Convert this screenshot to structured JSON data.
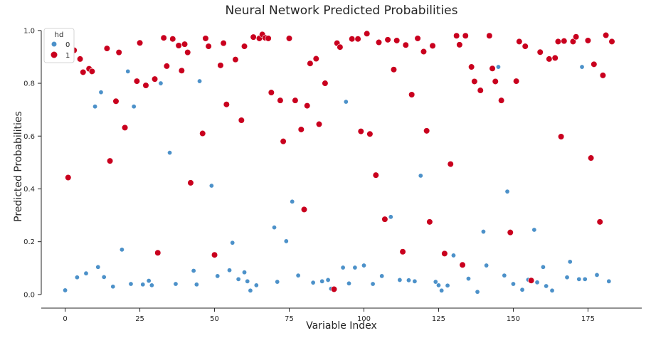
{
  "chart_data": {
    "type": "scatter",
    "title": "Neural Network Predicted Probabilities",
    "xlabel": "Variable Index",
    "ylabel": "Predicted Probabilities",
    "xlim": [
      -8,
      193
    ],
    "ylim": [
      -0.03,
      1.04
    ],
    "xticks": [
      0,
      25,
      50,
      75,
      100,
      125,
      150,
      175
    ],
    "yticks": [
      0.0,
      0.2,
      0.4,
      0.6,
      0.8,
      1.0
    ],
    "ytick_labels": [
      "0.0",
      "0.2",
      "0.4",
      "0.6",
      "0.8",
      "1.0"
    ],
    "grid": false,
    "legend": {
      "title": "hd",
      "placement": "top-left"
    },
    "series": [
      {
        "name": "0",
        "color": "#4c91c9",
        "points": [
          [
            0,
            0.016
          ],
          [
            4,
            0.065
          ],
          [
            7,
            0.08
          ],
          [
            10,
            0.712
          ],
          [
            11,
            0.104
          ],
          [
            12,
            0.766
          ],
          [
            13,
            0.066
          ],
          [
            16,
            0.03
          ],
          [
            19,
            0.17
          ],
          [
            21,
            0.845
          ],
          [
            22,
            0.04
          ],
          [
            23,
            0.712
          ],
          [
            26,
            0.038
          ],
          [
            28,
            0.052
          ],
          [
            29,
            0.035
          ],
          [
            32,
            0.8
          ],
          [
            35,
            0.537
          ],
          [
            37,
            0.04
          ],
          [
            43,
            0.09
          ],
          [
            44,
            0.038
          ],
          [
            45,
            0.808
          ],
          [
            49,
            0.412
          ],
          [
            51,
            0.07
          ],
          [
            55,
            0.092
          ],
          [
            56,
            0.196
          ],
          [
            58,
            0.058
          ],
          [
            60,
            0.084
          ],
          [
            61,
            0.05
          ],
          [
            62,
            0.015
          ],
          [
            64,
            0.035
          ],
          [
            70,
            0.254
          ],
          [
            71,
            0.048
          ],
          [
            74,
            0.202
          ],
          [
            76,
            0.352
          ],
          [
            78,
            0.072
          ],
          [
            83,
            0.045
          ],
          [
            86,
            0.05
          ],
          [
            88,
            0.055
          ],
          [
            89,
            0.022
          ],
          [
            93,
            0.102
          ],
          [
            94,
            0.73
          ],
          [
            95,
            0.042
          ],
          [
            97,
            0.102
          ],
          [
            100,
            0.11
          ],
          [
            103,
            0.04
          ],
          [
            106,
            0.07
          ],
          [
            109,
            0.294
          ],
          [
            112,
            0.055
          ],
          [
            115,
            0.054
          ],
          [
            117,
            0.05
          ],
          [
            119,
            0.45
          ],
          [
            124,
            0.048
          ],
          [
            125,
            0.035
          ],
          [
            126,
            0.015
          ],
          [
            128,
            0.034
          ],
          [
            130,
            0.148
          ],
          [
            135,
            0.06
          ],
          [
            138,
            0.01
          ],
          [
            140,
            0.238
          ],
          [
            141,
            0.11
          ],
          [
            145,
            0.862
          ],
          [
            147,
            0.072
          ],
          [
            148,
            0.39
          ],
          [
            150,
            0.04
          ],
          [
            153,
            0.018
          ],
          [
            155,
            0.056
          ],
          [
            157,
            0.245
          ],
          [
            158,
            0.046
          ],
          [
            160,
            0.104
          ],
          [
            161,
            0.032
          ],
          [
            163,
            0.015
          ],
          [
            168,
            0.065
          ],
          [
            169,
            0.124
          ],
          [
            172,
            0.058
          ],
          [
            173,
            0.862
          ],
          [
            174,
            0.058
          ],
          [
            178,
            0.074
          ],
          [
            182,
            0.05
          ]
        ]
      },
      {
        "name": "1",
        "color": "#c9001e",
        "points": [
          [
            1,
            0.443
          ],
          [
            2,
            0.962
          ],
          [
            3,
            0.925
          ],
          [
            5,
            0.892
          ],
          [
            6,
            0.842
          ],
          [
            8,
            0.855
          ],
          [
            9,
            0.845
          ],
          [
            14,
            0.932
          ],
          [
            15,
            0.506
          ],
          [
            17,
            0.732
          ],
          [
            18,
            0.917
          ],
          [
            20,
            0.632
          ],
          [
            24,
            0.808
          ],
          [
            25,
            0.953
          ],
          [
            27,
            0.792
          ],
          [
            30,
            0.816
          ],
          [
            31,
            0.158
          ],
          [
            33,
            0.972
          ],
          [
            34,
            0.865
          ],
          [
            36,
            0.968
          ],
          [
            38,
            0.943
          ],
          [
            39,
            0.848
          ],
          [
            40,
            0.948
          ],
          [
            41,
            0.917
          ],
          [
            42,
            0.423
          ],
          [
            46,
            0.61
          ],
          [
            47,
            0.97
          ],
          [
            48,
            0.94
          ],
          [
            50,
            0.15
          ],
          [
            52,
            0.868
          ],
          [
            53,
            0.952
          ],
          [
            54,
            0.72
          ],
          [
            57,
            0.89
          ],
          [
            59,
            0.66
          ],
          [
            60,
            0.94
          ],
          [
            63,
            0.975
          ],
          [
            65,
            0.97
          ],
          [
            66,
            0.985
          ],
          [
            67,
            0.972
          ],
          [
            68,
            0.97
          ],
          [
            69,
            0.765
          ],
          [
            72,
            0.735
          ],
          [
            73,
            0.58
          ],
          [
            75,
            0.97
          ],
          [
            77,
            0.735
          ],
          [
            79,
            0.625
          ],
          [
            80,
            0.322
          ],
          [
            81,
            0.715
          ],
          [
            82,
            0.875
          ],
          [
            84,
            0.893
          ],
          [
            85,
            0.645
          ],
          [
            87,
            0.8
          ],
          [
            90,
            0.02
          ],
          [
            91,
            0.952
          ],
          [
            92,
            0.937
          ],
          [
            96,
            0.968
          ],
          [
            98,
            0.968
          ],
          [
            99,
            0.618
          ],
          [
            101,
            0.988
          ],
          [
            102,
            0.608
          ],
          [
            104,
            0.452
          ],
          [
            105,
            0.955
          ],
          [
            107,
            0.285
          ],
          [
            108,
            0.965
          ],
          [
            110,
            0.852
          ],
          [
            111,
            0.962
          ],
          [
            113,
            0.162
          ],
          [
            114,
            0.945
          ],
          [
            116,
            0.757
          ],
          [
            118,
            0.97
          ],
          [
            120,
            0.92
          ],
          [
            121,
            0.62
          ],
          [
            122,
            0.275
          ],
          [
            123,
            0.942
          ],
          [
            127,
            0.155
          ],
          [
            129,
            0.494
          ],
          [
            131,
            0.98
          ],
          [
            132,
            0.946
          ],
          [
            133,
            0.112
          ],
          [
            134,
            0.98
          ],
          [
            136,
            0.862
          ],
          [
            137,
            0.807
          ],
          [
            139,
            0.773
          ],
          [
            142,
            0.98
          ],
          [
            143,
            0.856
          ],
          [
            144,
            0.807
          ],
          [
            146,
            0.735
          ],
          [
            149,
            0.235
          ],
          [
            151,
            0.808
          ],
          [
            152,
            0.958
          ],
          [
            154,
            0.94
          ],
          [
            156,
            0.053
          ],
          [
            159,
            0.918
          ],
          [
            162,
            0.892
          ],
          [
            164,
            0.896
          ],
          [
            165,
            0.958
          ],
          [
            166,
            0.598
          ],
          [
            167,
            0.96
          ],
          [
            170,
            0.958
          ],
          [
            171,
            0.976
          ],
          [
            175,
            0.962
          ],
          [
            176,
            0.517
          ],
          [
            177,
            0.872
          ],
          [
            179,
            0.275
          ],
          [
            180,
            0.83
          ],
          [
            181,
            0.982
          ],
          [
            183,
            0.958
          ]
        ]
      }
    ]
  }
}
